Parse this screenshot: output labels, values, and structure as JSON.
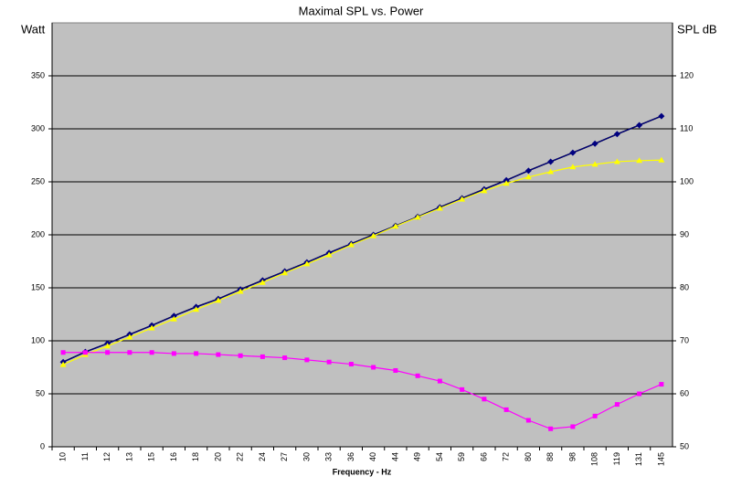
{
  "chart_data": {
    "type": "line",
    "title": "Maximal SPL vs. Power",
    "y_label": "Watt",
    "y2_label": "SPL dB",
    "x_label": "Frequency - Hz",
    "categories": [
      "10",
      "11",
      "12",
      "13",
      "15",
      "16",
      "18",
      "20",
      "22",
      "24",
      "27",
      "30",
      "33",
      "36",
      "40",
      "44",
      "49",
      "54",
      "59",
      "66",
      "72",
      "80",
      "88",
      "98",
      "108",
      "119",
      "131",
      "145"
    ],
    "ylim": [
      0,
      400
    ],
    "yticks": [
      0,
      50,
      100,
      150,
      200,
      250,
      300,
      350
    ],
    "y2lim": [
      50,
      130
    ],
    "y2ticks": [
      50,
      60,
      70,
      80,
      90,
      100,
      110,
      120
    ],
    "grid": true,
    "series": [
      {
        "color": "#000080",
        "marker": "diamond",
        "axis": "y2",
        "values": [
          66.0,
          67.9,
          69.5,
          71.2,
          72.9,
          74.7,
          76.4,
          77.9,
          79.7,
          81.4,
          83.1,
          84.8,
          86.6,
          88.3,
          90.0,
          91.7,
          93.4,
          95.2,
          96.9,
          98.6,
          100.3,
          102.1,
          103.8,
          105.5,
          107.2,
          109.0,
          110.7,
          112.4
        ]
      },
      {
        "color": "#ffff00",
        "marker": "triangle",
        "axis": "y2",
        "values": [
          65.5,
          67.4,
          69.0,
          70.7,
          72.4,
          74.1,
          75.9,
          77.6,
          79.3,
          81.0,
          82.8,
          84.5,
          86.2,
          88.1,
          89.8,
          91.6,
          93.3,
          95.0,
          96.7,
          98.3,
          99.7,
          100.9,
          101.9,
          102.8,
          103.3,
          103.8,
          104.0,
          104.1
        ]
      },
      {
        "color": "#ff00ff",
        "marker": "square",
        "axis": "y",
        "values": [
          89,
          89,
          89,
          89,
          89,
          88,
          88,
          87,
          86,
          85,
          84,
          82,
          80,
          78,
          75,
          72,
          67,
          62,
          54,
          45,
          35,
          25,
          17,
          19,
          29,
          40,
          50,
          59
        ]
      }
    ]
  }
}
